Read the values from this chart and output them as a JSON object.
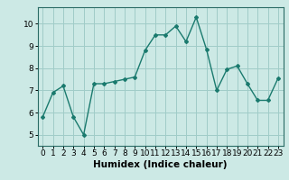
{
  "x": [
    0,
    1,
    2,
    3,
    4,
    5,
    6,
    7,
    8,
    9,
    10,
    11,
    12,
    13,
    14,
    15,
    16,
    17,
    18,
    19,
    20,
    21,
    22,
    23
  ],
  "y": [
    5.8,
    6.9,
    7.2,
    5.8,
    5.0,
    7.3,
    7.3,
    7.4,
    7.5,
    7.6,
    8.8,
    9.5,
    9.5,
    9.9,
    9.2,
    10.3,
    8.85,
    7.0,
    7.95,
    8.1,
    7.3,
    6.55,
    6.55,
    7.55
  ],
  "line_color": "#1a7a6e",
  "marker": "D",
  "marker_size": 2.0,
  "line_width": 1.0,
  "xlabel": "Humidex (Indice chaleur)",
  "xlabel_fontsize": 7.5,
  "ylabel": "",
  "xlim": [
    -0.5,
    23.5
  ],
  "ylim": [
    4.5,
    10.75
  ],
  "yticks": [
    5,
    6,
    7,
    8,
    9,
    10
  ],
  "xticks": [
    0,
    1,
    2,
    3,
    4,
    5,
    6,
    7,
    8,
    9,
    10,
    11,
    12,
    13,
    14,
    15,
    16,
    17,
    18,
    19,
    20,
    21,
    22,
    23
  ],
  "background_color": "#cce9e5",
  "grid_color": "#a0ccc8",
  "tick_fontsize": 6.5
}
